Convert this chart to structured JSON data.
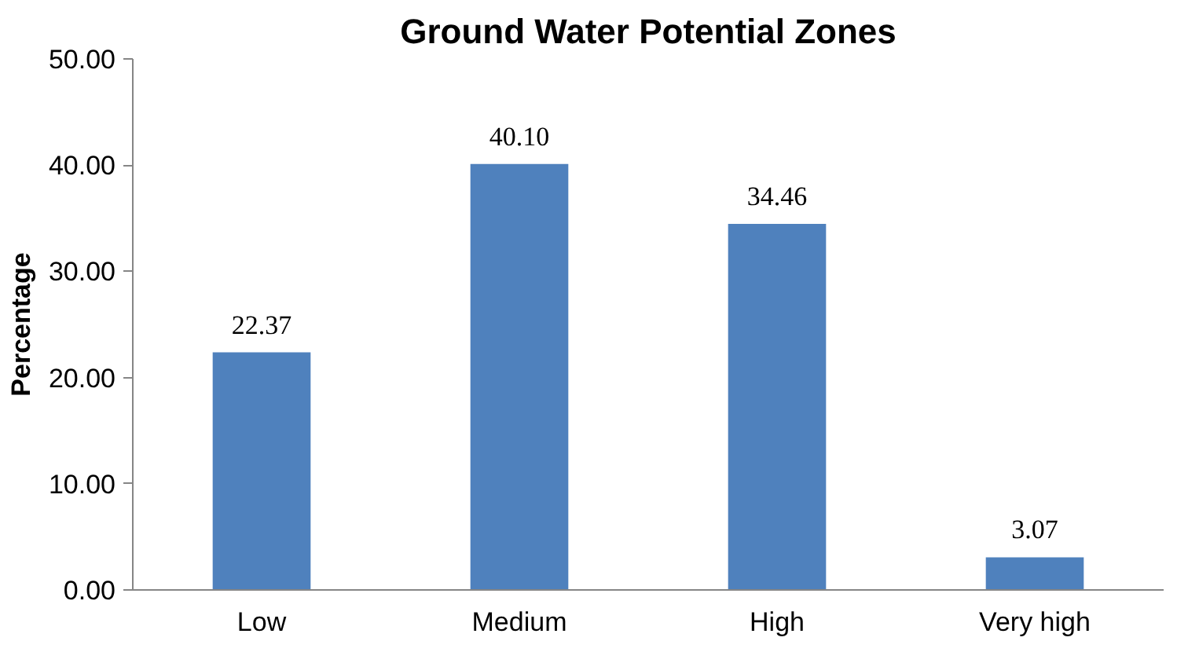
{
  "chart_data": {
    "type": "bar",
    "title": "Ground Water Potential Zones",
    "ylabel": "Percentage",
    "categories": [
      "Low",
      "Medium",
      "High",
      "Very high"
    ],
    "values": [
      22.37,
      40.1,
      34.46,
      3.07
    ],
    "value_labels": [
      "22.37",
      "40.10",
      "34.46",
      "3.07"
    ],
    "color": "#4f81bd",
    "ylim": [
      0,
      50
    ],
    "yticks": [
      {
        "value": 0,
        "label": "0.00"
      },
      {
        "value": 10,
        "label": "10.00"
      },
      {
        "value": 20,
        "label": "20.00"
      },
      {
        "value": 30,
        "label": "30.00"
      },
      {
        "value": 40,
        "label": "40.00"
      },
      {
        "value": 50,
        "label": "50.00"
      }
    ],
    "grid": false
  }
}
